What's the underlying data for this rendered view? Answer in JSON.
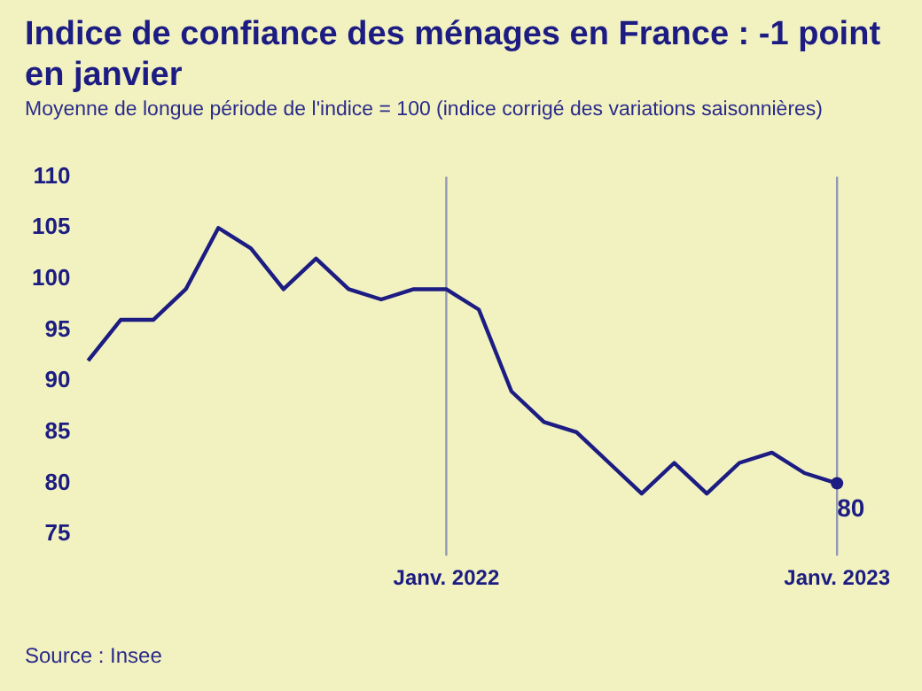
{
  "chart_data": {
    "type": "line",
    "title": "Indice de confiance des ménages en France : -1 point en janvier",
    "subtitle": "Moyenne de longue période de l'indice = 100 (indice corrigé des variations saisonnières)",
    "categories": [
      null,
      null,
      null,
      null,
      null,
      null,
      null,
      null,
      null,
      null,
      null,
      "Janv. 2022",
      null,
      null,
      null,
      null,
      null,
      null,
      null,
      null,
      null,
      null,
      null,
      "Janv. 2023"
    ],
    "series": [
      {
        "color": "#1c1c82",
        "values": [
          92,
          96,
          96,
          99,
          105,
          103,
          99,
          102,
          99,
          98,
          99,
          99,
          97,
          89,
          86,
          85,
          82,
          79,
          82,
          79,
          82,
          83,
          81,
          80
        ]
      }
    ],
    "ylim": [
      75,
      110
    ],
    "yticks": [
      75,
      80,
      85,
      90,
      95,
      100,
      105,
      110
    ],
    "grid": false,
    "legend": false,
    "ref_lines": [
      {
        "axis": "x",
        "value": "Janv. 2022",
        "color": "#9598b5"
      },
      {
        "axis": "x",
        "value": "Janv. 2023",
        "color": "#9598b5"
      }
    ],
    "annotations": [
      {
        "text": "80",
        "x": "Janv. 2023",
        "y": 80
      },
      "Source : Insee"
    ]
  }
}
